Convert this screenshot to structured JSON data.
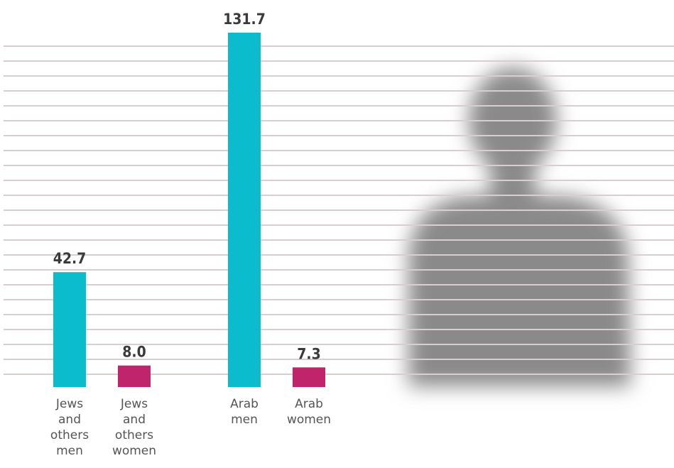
{
  "chart_data": {
    "type": "bar",
    "categories": [
      "Jews and others men",
      "Jews and others women",
      "Arab men",
      "Arab women"
    ],
    "values": [
      42.7,
      8.0,
      131.7,
      7.3
    ],
    "value_labels": [
      "42.7",
      "8.0",
      "131.7",
      "7.3"
    ],
    "colors": [
      "#0bbdcc",
      "#c0246a",
      "#0bbdcc",
      "#c0246a"
    ]
  }
}
